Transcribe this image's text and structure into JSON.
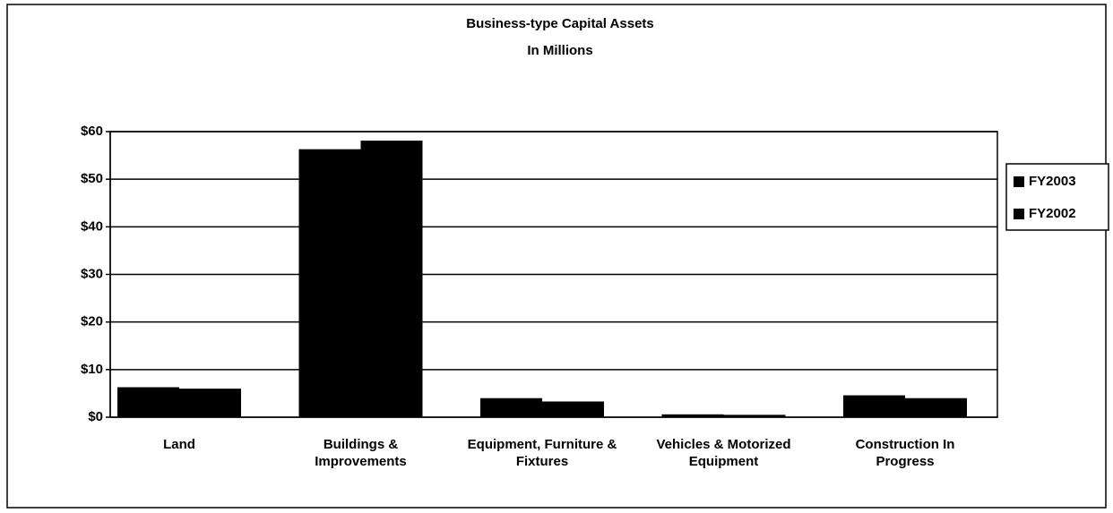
{
  "chart_data": {
    "type": "bar",
    "title": "Business-type Capital Assets",
    "subtitle": "In Millions",
    "categories": [
      "Land",
      "Buildings & Improvements",
      "Equipment, Furniture & Fixtures",
      "Vehicles & Motorized Equipment",
      "Construction In Progress"
    ],
    "series": [
      {
        "name": "FY2003",
        "color": "#000000",
        "values": [
          6.3,
          56.3,
          4.0,
          0.6,
          4.6
        ]
      },
      {
        "name": "FY2002",
        "color": "#000000",
        "values": [
          6.0,
          58.1,
          3.3,
          0.5,
          4.0
        ]
      }
    ],
    "ylim": [
      0,
      60
    ],
    "yticks": [
      {
        "value": 0,
        "label": "$0"
      },
      {
        "value": 10,
        "label": "$10"
      },
      {
        "value": 20,
        "label": "$20"
      },
      {
        "value": 30,
        "label": "$30"
      },
      {
        "value": 40,
        "label": "$40"
      },
      {
        "value": 50,
        "label": "$50"
      },
      {
        "value": 60,
        "label": "$60"
      }
    ],
    "grid": true,
    "legend": "right"
  }
}
